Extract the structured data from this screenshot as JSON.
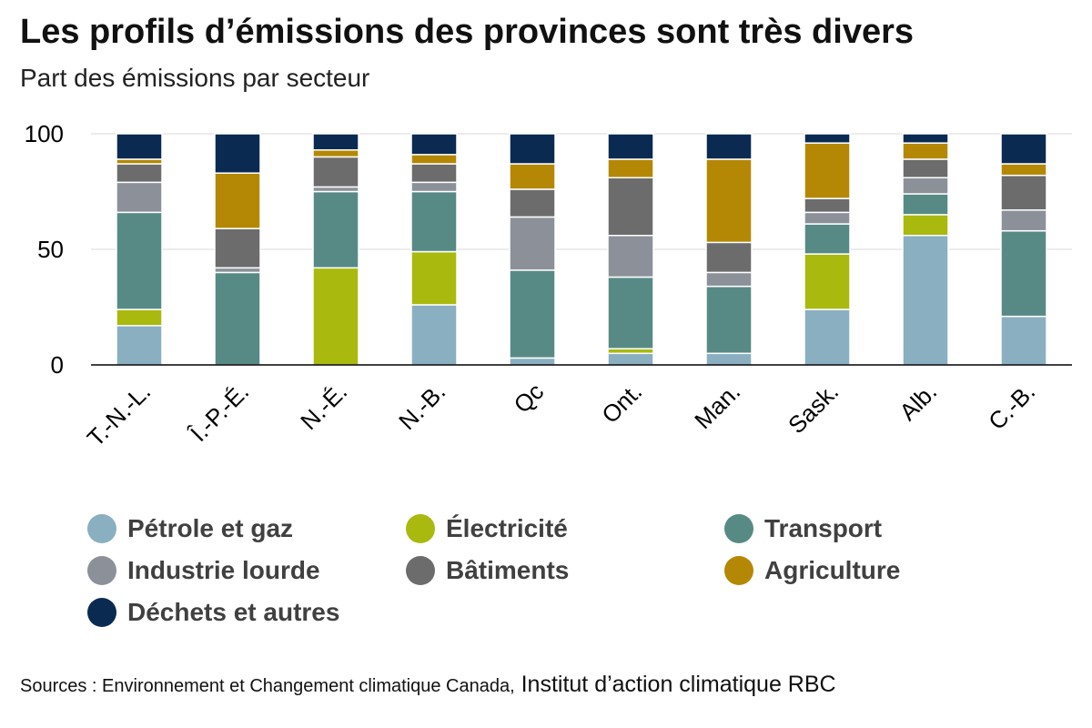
{
  "header": {
    "title": "Les profils d’émissions des provinces sont très divers",
    "subtitle": "Part des émissions par secteur"
  },
  "source": {
    "prefix": "Sources : Environnement et Changement climatique Canada,",
    "suffix": " Institut d’action climatique RBC"
  },
  "colors": {
    "grid": "#d9d9d9",
    "axis": "#000000"
  },
  "chart_data": {
    "type": "bar",
    "stacked": true,
    "ylim": [
      0,
      100
    ],
    "yticks": [
      0,
      50,
      100
    ],
    "grid": true,
    "legend_position": "bottom",
    "categories": [
      "T.-N.-L.",
      "Î.-P.-É.",
      "N.-É.",
      "N.-B.",
      "Qc",
      "Ont.",
      "Man.",
      "Sask.",
      "Alb.",
      "C.-B."
    ],
    "series": [
      {
        "name": "Pétrole et gaz",
        "color": "#8aafc0",
        "values": [
          17,
          0,
          0,
          26,
          3,
          5,
          5,
          24,
          56,
          21
        ]
      },
      {
        "name": "Électricité",
        "color": "#a9b90e",
        "values": [
          7,
          0,
          42,
          23,
          0,
          2,
          0,
          24,
          9,
          0
        ]
      },
      {
        "name": "Transport",
        "color": "#578a85",
        "values": [
          42,
          40,
          33,
          26,
          38,
          31,
          29,
          13,
          9,
          37
        ]
      },
      {
        "name": "Industrie lourde",
        "color": "#8c9199",
        "values": [
          13,
          2,
          2,
          4,
          23,
          18,
          6,
          5,
          7,
          9
        ]
      },
      {
        "name": "Bâtiments",
        "color": "#6c6c6c",
        "values": [
          8,
          17,
          13,
          8,
          12,
          25,
          13,
          6,
          8,
          15
        ]
      },
      {
        "name": "Agriculture",
        "color": "#b48804",
        "values": [
          2,
          24,
          3,
          4,
          11,
          8,
          36,
          24,
          7,
          5
        ]
      },
      {
        "name": "Déchets et autres",
        "color": "#0b2a52",
        "values": [
          11,
          17,
          7,
          9,
          13,
          11,
          11,
          4,
          4,
          13
        ]
      }
    ]
  }
}
